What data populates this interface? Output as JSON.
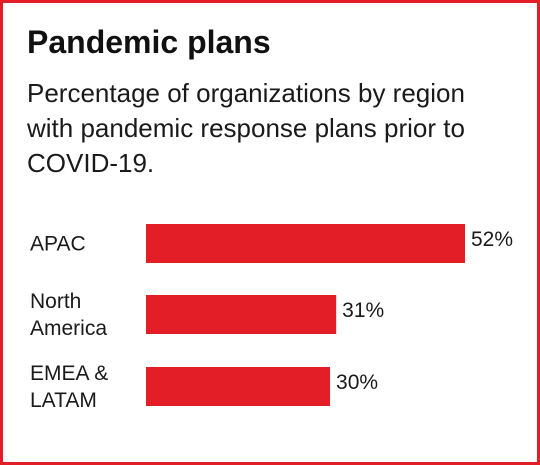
{
  "title": "Pandemic plans",
  "subtitle": "Percentage of organizations by region with pandemic response plans prior to COVID-19.",
  "colors": {
    "bar": "#e31e26",
    "border": "#e31e26"
  },
  "chart_data": {
    "type": "bar",
    "orientation": "horizontal",
    "categories": [
      "APAC",
      "North America",
      "EMEA & LATAM"
    ],
    "category_lines": [
      [
        "APAC"
      ],
      [
        "North",
        "America"
      ],
      [
        "EMEA &",
        "LATAM"
      ]
    ],
    "values": [
      52,
      31,
      30
    ],
    "value_labels": [
      "52%",
      "31%",
      "30%"
    ],
    "unit": "%",
    "xlim": [
      0,
      52
    ],
    "grid": false,
    "legend": "none"
  }
}
